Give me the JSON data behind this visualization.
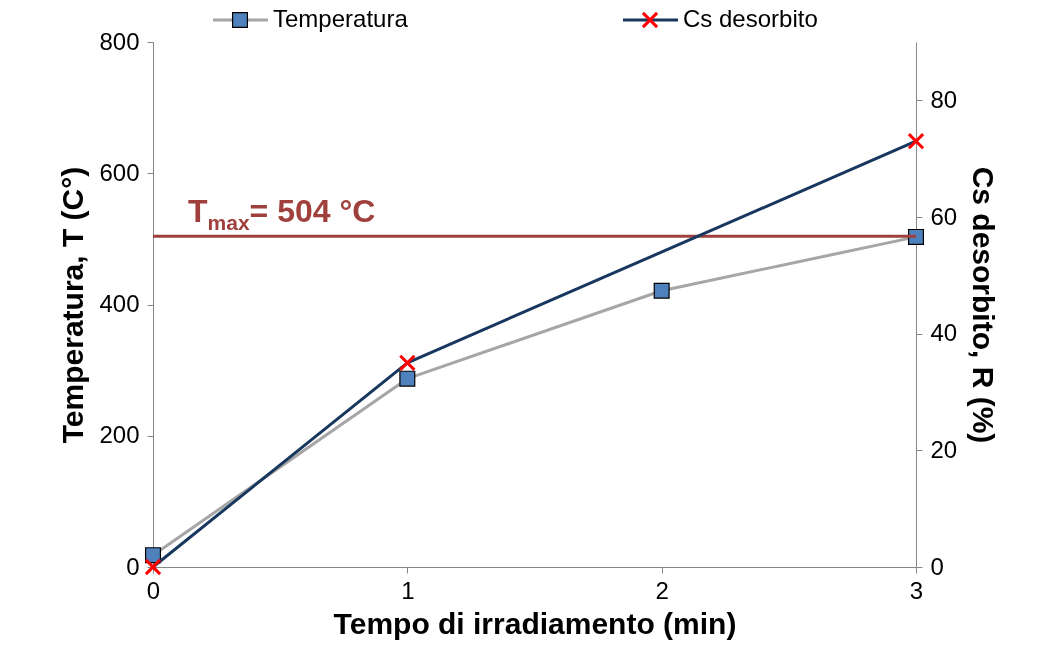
{
  "chart_data": {
    "type": "line",
    "xlabel": "Tempo di irradiamento (min)",
    "ylabel": "Temperatura,  T (C°)",
    "y2label": "Cs desorbito,  R (%)",
    "x": [
      0,
      1,
      2,
      3
    ],
    "series": [
      {
        "name": "Temperatura",
        "color": "#a6a6a6",
        "marker": "square",
        "values": [
          18,
          287,
          421,
          503
        ]
      },
      {
        "name": "Cs desorbito",
        "color": "#17375e",
        "marker": "cross",
        "axis": "y2",
        "values": [
          0,
          35,
          null,
          73
        ]
      }
    ],
    "xlim": [
      0,
      3
    ],
    "xticks": [
      0,
      1,
      2,
      3
    ],
    "ylim": [
      0,
      800
    ],
    "yticks": [
      0,
      200,
      400,
      600,
      800
    ],
    "y2lim": [
      0,
      90
    ],
    "y2ticks": [
      0,
      20,
      40,
      60,
      80
    ],
    "ref_lines": [
      {
        "axis": "y",
        "value": 504,
        "label": "T$_{max}$= 504 °C",
        "color": "#a0403d"
      }
    ],
    "grid": false,
    "legend": "top"
  }
}
